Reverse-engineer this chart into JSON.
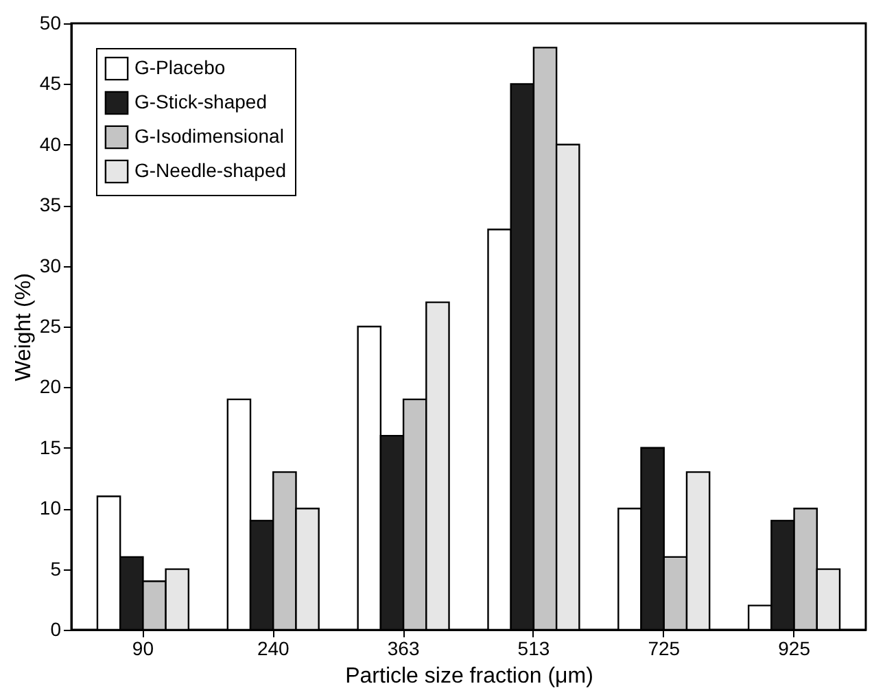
{
  "chart_data": {
    "type": "bar",
    "xlabel": "Particle size fraction (μm)",
    "ylabel": "Weight (%)",
    "categories": [
      "90",
      "240",
      "363",
      "513",
      "725",
      "925"
    ],
    "series": [
      {
        "name": "G-Placebo",
        "color": "#ffffff",
        "values": [
          11,
          19,
          25,
          33,
          10,
          2
        ]
      },
      {
        "name": "G-Stick-shaped",
        "color": "#1e1e1e",
        "values": [
          6,
          9,
          16,
          45,
          15,
          9
        ]
      },
      {
        "name": "G-Isodimensional",
        "color": "#c4c4c4",
        "values": [
          4,
          13,
          19,
          48,
          6,
          10
        ]
      },
      {
        "name": "G-Needle-shaped",
        "color": "#e6e6e6",
        "values": [
          5,
          10,
          27,
          40,
          13,
          5
        ]
      }
    ],
    "ylim": [
      0,
      50
    ],
    "yticks": [
      0,
      5,
      10,
      15,
      20,
      25,
      30,
      35,
      40,
      45,
      50
    ],
    "legend": "top left"
  }
}
